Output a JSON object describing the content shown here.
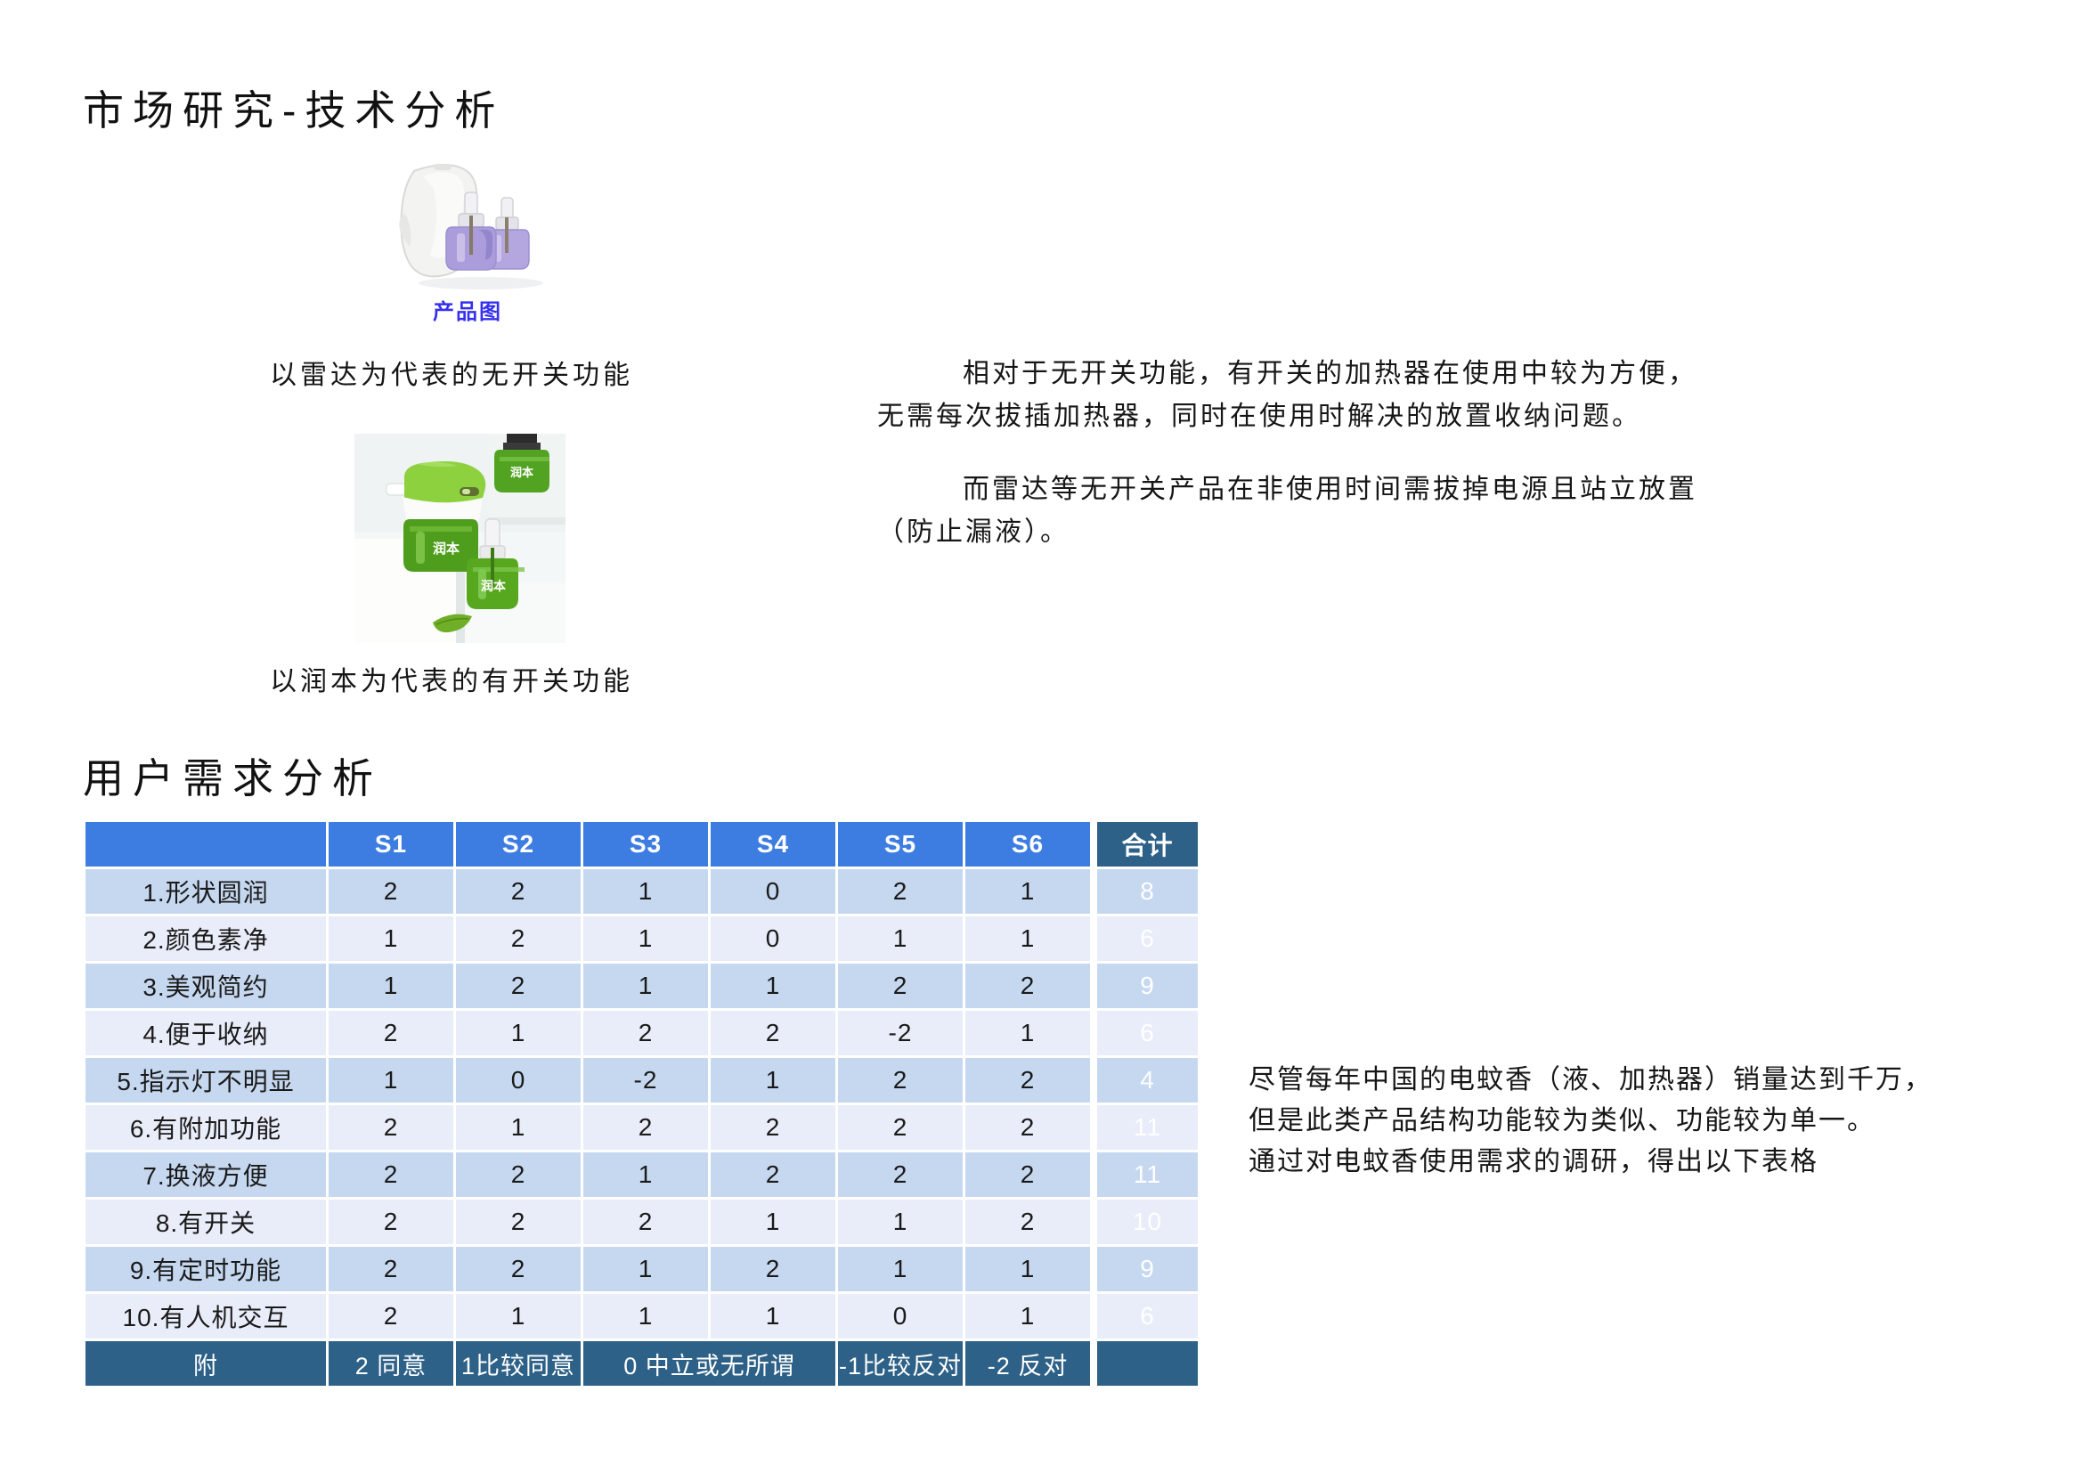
{
  "title": "市场研究-技术分析",
  "section_user_needs": "用户需求分析",
  "product_radar": {
    "image_label": "产品图",
    "caption": "以雷达为代表的无开关功能"
  },
  "product_runben": {
    "caption": "以润本为代表的有开关功能",
    "bottle_label": "润本"
  },
  "comparison": {
    "para1_line1": "相对于无开关功能，有开关的加热器在使用中较为方便，",
    "para1_line2": "无需每次拔插加热器，同时在使用时解决的放置收纳问题。",
    "para2_line1": "而雷达等无开关产品在非使用时间需拔掉电源且站立放置",
    "para2_line2": "（防止漏液）。"
  },
  "side_note": {
    "line1": "尽管每年中国的电蚊香（液、加热器）销量达到千万，",
    "line2": "但是此类产品结构功能较为类似、功能较为单一。",
    "line3": "通过对电蚊香使用需求的调研，得出以下表格"
  },
  "survey_table": {
    "header": [
      "S1",
      "S2",
      "S3",
      "S4",
      "S5",
      "S6",
      "合计"
    ],
    "rows": [
      {
        "label": "1.形状圆润",
        "values": [
          2,
          2,
          1,
          0,
          2,
          1
        ],
        "total": 8
      },
      {
        "label": "2.颜色素净",
        "values": [
          1,
          2,
          1,
          0,
          1,
          1
        ],
        "total": 6
      },
      {
        "label": "3.美观简约",
        "values": [
          1,
          2,
          1,
          1,
          2,
          2
        ],
        "total": 9
      },
      {
        "label": "4.便于收纳",
        "values": [
          2,
          1,
          2,
          2,
          -2,
          1
        ],
        "total": 6
      },
      {
        "label": "5.指示灯不明显",
        "values": [
          1,
          0,
          -2,
          1,
          2,
          2
        ],
        "total": 4
      },
      {
        "label": "6.有附加功能",
        "values": [
          2,
          1,
          2,
          2,
          2,
          2
        ],
        "total": 11
      },
      {
        "label": "7.换液方便",
        "values": [
          2,
          2,
          1,
          2,
          2,
          2
        ],
        "total": 11
      },
      {
        "label": "8.有开关",
        "values": [
          2,
          2,
          2,
          1,
          1,
          2
        ],
        "total": 10
      },
      {
        "label": "9.有定时功能",
        "values": [
          2,
          2,
          1,
          2,
          1,
          1
        ],
        "total": 9
      },
      {
        "label": "10.有人机交互",
        "values": [
          2,
          1,
          1,
          1,
          0,
          1
        ],
        "total": 6
      }
    ],
    "legend": {
      "label": "附",
      "agree2": "2 同意",
      "agree1": "1比较同意",
      "neutral": "0 中立或无所谓",
      "oppose1": "-1比较反对",
      "oppose2": "-2 反对"
    }
  },
  "colors": {
    "header_blue": "#3d7de2",
    "total_teal": "#2e6187",
    "row_odd": "#c6d8f0",
    "row_even": "#e9edf9",
    "product_label_blue": "#3530ee"
  }
}
